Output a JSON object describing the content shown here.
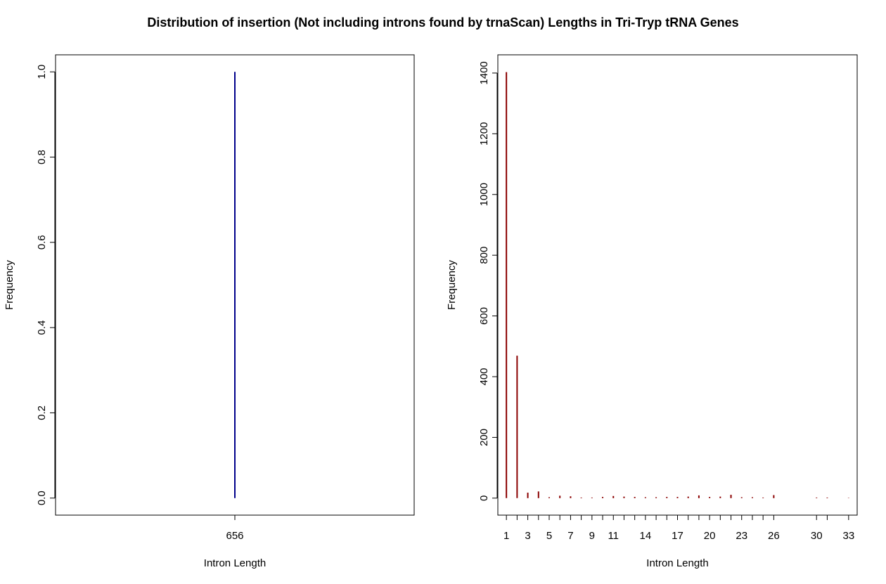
{
  "title": "Distribution of insertion (Not including introns found by trnaScan) Lengths in Tri-Tryp tRNA Genes",
  "chart_data": [
    {
      "type": "bar",
      "subtype": "histogram-lines",
      "xlabel": "Intron Length",
      "ylabel": "Frequency",
      "color": "#00008B",
      "categories": [
        "656"
      ],
      "values": [
        1
      ],
      "xlim": [
        0.4,
        1.6
      ],
      "ylim": [
        -0.04,
        1.04
      ],
      "yticks": [
        0.0,
        0.2,
        0.4,
        0.6,
        0.8,
        1.0
      ],
      "ytick_labels": [
        "0.0",
        "0.2",
        "0.4",
        "0.6",
        "0.8",
        "1.0"
      ],
      "xtick_labels": [
        "656"
      ],
      "grid": false
    },
    {
      "type": "bar",
      "subtype": "histogram-lines",
      "xlabel": "Intron Length",
      "ylabel": "Frequency",
      "color": "#8B0000",
      "x": [
        1,
        2,
        3,
        4,
        5,
        6,
        7,
        8,
        9,
        10,
        11,
        12,
        13,
        14,
        15,
        16,
        17,
        18,
        19,
        20,
        21,
        22,
        23,
        24,
        25,
        26,
        30,
        31,
        33
      ],
      "values": [
        1403,
        469,
        18,
        22,
        3,
        8,
        6,
        2,
        2,
        4,
        7,
        5,
        4,
        3,
        3,
        4,
        4,
        5,
        9,
        4,
        5,
        11,
        3,
        3,
        2,
        10,
        2,
        2,
        1
      ],
      "xlim": [
        0.2,
        33.8
      ],
      "ylim": [
        -56,
        1460
      ],
      "yticks": [
        0,
        200,
        400,
        600,
        800,
        1000,
        1200,
        1400
      ],
      "ytick_labels": [
        "0",
        "200",
        "400",
        "600",
        "800",
        "1000",
        "1200",
        "1400"
      ],
      "xtick_labels": [
        "1",
        "3",
        "5",
        "7",
        "9",
        "11",
        "14",
        "17",
        "20",
        "23",
        "26",
        "30",
        "33"
      ],
      "grid": false
    }
  ]
}
